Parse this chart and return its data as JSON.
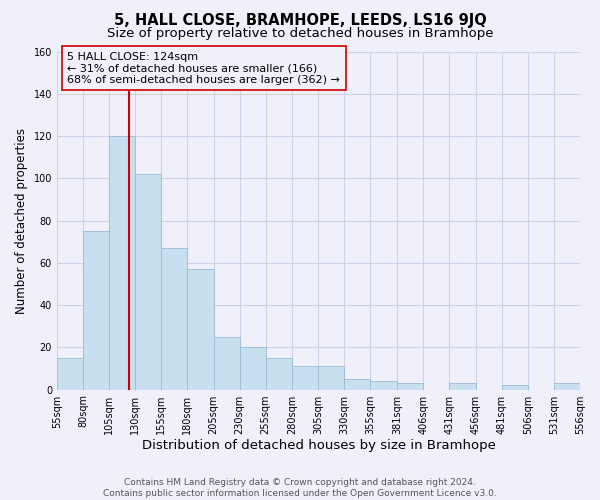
{
  "title": "5, HALL CLOSE, BRAMHOPE, LEEDS, LS16 9JQ",
  "subtitle": "Size of property relative to detached houses in Bramhope",
  "bar_edges": [
    55,
    80,
    105,
    130,
    155,
    180,
    205,
    230,
    255,
    280,
    305,
    330,
    355,
    381,
    406,
    431,
    456,
    481,
    506,
    531,
    556
  ],
  "bar_heights": [
    15,
    75,
    120,
    102,
    67,
    57,
    25,
    20,
    15,
    11,
    11,
    5,
    4,
    3,
    0,
    3,
    0,
    2,
    0,
    3
  ],
  "bar_color": "#c8dff0",
  "bar_edgecolor": "#9abcd6",
  "vline_x": 124,
  "vline_color": "#cc0000",
  "xlabel": "Distribution of detached houses by size in Bramhope",
  "ylabel": "Number of detached properties",
  "ylim": [
    0,
    160
  ],
  "yticks": [
    0,
    20,
    40,
    60,
    80,
    100,
    120,
    140,
    160
  ],
  "xtick_labels": [
    "55sqm",
    "80sqm",
    "105sqm",
    "130sqm",
    "155sqm",
    "180sqm",
    "205sqm",
    "230sqm",
    "255sqm",
    "280sqm",
    "305sqm",
    "330sqm",
    "355sqm",
    "381sqm",
    "406sqm",
    "431sqm",
    "456sqm",
    "481sqm",
    "506sqm",
    "531sqm",
    "556sqm"
  ],
  "annotation_line1": "5 HALL CLOSE: 124sqm",
  "annotation_line2": "← 31% of detached houses are smaller (166)",
  "annotation_line3": "68% of semi-detached houses are larger (362) →",
  "footer_line1": "Contains HM Land Registry data © Crown copyright and database right 2024.",
  "footer_line2": "Contains public sector information licensed under the Open Government Licence v3.0.",
  "bg_color": "#f0f0fa",
  "grid_color": "#d0d0e8",
  "title_fontsize": 10.5,
  "subtitle_fontsize": 9.5,
  "xlabel_fontsize": 9.5,
  "ylabel_fontsize": 8.5,
  "tick_fontsize": 7,
  "annot_fontsize": 8,
  "footer_fontsize": 6.5
}
